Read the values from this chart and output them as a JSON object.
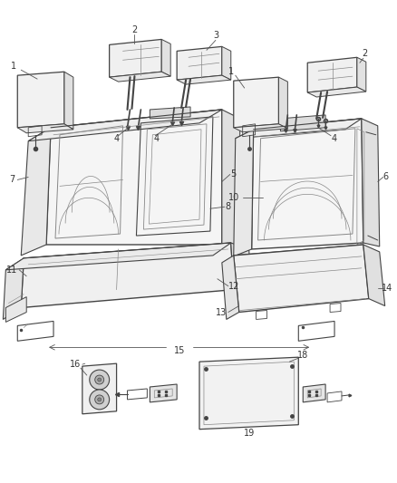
{
  "bg_color": "#ffffff",
  "lc": "#444444",
  "lc2": "#888888",
  "label_fs": 7,
  "figsize": [
    4.38,
    5.33
  ],
  "dpi": 100
}
